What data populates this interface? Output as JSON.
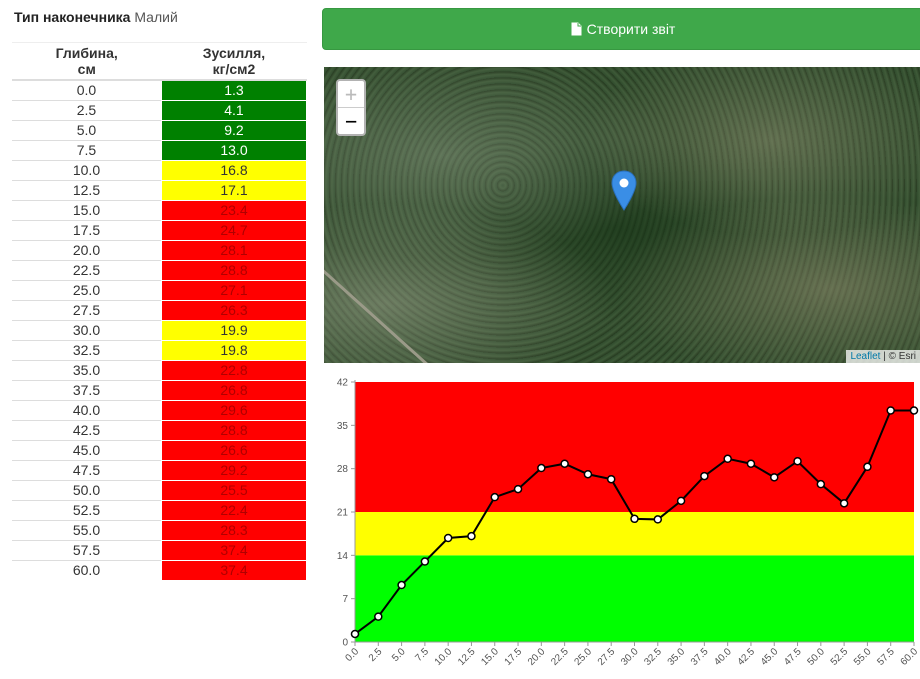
{
  "tip": {
    "label": "Тип наконечника",
    "value": "Малий"
  },
  "table": {
    "header_depth_1": "Глибина,",
    "header_depth_2": "см",
    "header_force_1": "Зусилля,",
    "header_force_2": "кг/см2",
    "rows": [
      {
        "depth": "0.0",
        "force": "1.3",
        "zone": "green"
      },
      {
        "depth": "2.5",
        "force": "4.1",
        "zone": "green"
      },
      {
        "depth": "5.0",
        "force": "9.2",
        "zone": "green"
      },
      {
        "depth": "7.5",
        "force": "13.0",
        "zone": "green"
      },
      {
        "depth": "10.0",
        "force": "16.8",
        "zone": "yellow"
      },
      {
        "depth": "12.5",
        "force": "17.1",
        "zone": "yellow"
      },
      {
        "depth": "15.0",
        "force": "23.4",
        "zone": "red"
      },
      {
        "depth": "17.5",
        "force": "24.7",
        "zone": "red"
      },
      {
        "depth": "20.0",
        "force": "28.1",
        "zone": "red"
      },
      {
        "depth": "22.5",
        "force": "28.8",
        "zone": "red"
      },
      {
        "depth": "25.0",
        "force": "27.1",
        "zone": "red"
      },
      {
        "depth": "27.5",
        "force": "26.3",
        "zone": "red"
      },
      {
        "depth": "30.0",
        "force": "19.9",
        "zone": "yellow"
      },
      {
        "depth": "32.5",
        "force": "19.8",
        "zone": "yellow"
      },
      {
        "depth": "35.0",
        "force": "22.8",
        "zone": "red"
      },
      {
        "depth": "37.5",
        "force": "26.8",
        "zone": "red"
      },
      {
        "depth": "40.0",
        "force": "29.6",
        "zone": "red"
      },
      {
        "depth": "42.5",
        "force": "28.8",
        "zone": "red"
      },
      {
        "depth": "45.0",
        "force": "26.6",
        "zone": "red"
      },
      {
        "depth": "47.5",
        "force": "29.2",
        "zone": "red"
      },
      {
        "depth": "50.0",
        "force": "25.5",
        "zone": "red"
      },
      {
        "depth": "52.5",
        "force": "22.4",
        "zone": "red"
      },
      {
        "depth": "55.0",
        "force": "28.3",
        "zone": "red"
      },
      {
        "depth": "57.5",
        "force": "37.4",
        "zone": "red"
      },
      {
        "depth": "60.0",
        "force": "37.4",
        "zone": "red"
      }
    ]
  },
  "report_button": {
    "label": "Створити звіт",
    "icon": "file-icon"
  },
  "map": {
    "zoom_in": "+",
    "zoom_out": "−",
    "attribution_link": "Leaflet",
    "attribution_rest": " | © Esri"
  },
  "colors": {
    "green": "#00ff00",
    "yellow": "#ffff00",
    "red": "#ff0000",
    "button": "#3fa84a"
  },
  "chart_data": {
    "type": "line",
    "x": [
      "0.0",
      "2.5",
      "5.0",
      "7.5",
      "10.0",
      "12.5",
      "15.0",
      "17.5",
      "20.0",
      "22.5",
      "25.0",
      "27.5",
      "30.0",
      "32.5",
      "35.0",
      "37.5",
      "40.0",
      "42.5",
      "45.0",
      "47.5",
      "50.0",
      "52.5",
      "55.0",
      "57.5",
      "60.0"
    ],
    "values": [
      1.3,
      4.1,
      9.2,
      13.0,
      16.8,
      17.1,
      23.4,
      24.7,
      28.1,
      28.8,
      27.1,
      26.3,
      19.9,
      19.8,
      22.8,
      26.8,
      29.6,
      28.8,
      26.6,
      29.2,
      25.5,
      22.4,
      28.3,
      37.4,
      37.4
    ],
    "yticks": [
      0,
      7,
      14,
      21,
      28,
      35,
      42
    ],
    "ylim": [
      0,
      42
    ],
    "bands": [
      {
        "from": 0,
        "to": 14,
        "color": "#00ff00"
      },
      {
        "from": 14,
        "to": 21,
        "color": "#ffff00"
      },
      {
        "from": 21,
        "to": 42,
        "color": "#ff0000"
      }
    ],
    "title": "",
    "xlabel": "",
    "ylabel": ""
  }
}
